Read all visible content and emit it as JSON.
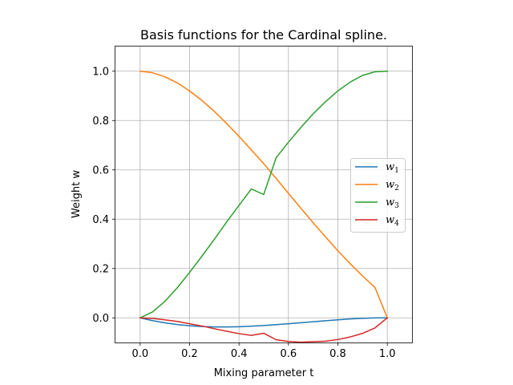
{
  "chart_data": {
    "type": "line",
    "title": "Basis functions for the Cardinal spline.",
    "xlabel": "Mixing parameter t",
    "ylabel": "Weight w",
    "xlim": [
      -0.1,
      1.1
    ],
    "ylim": [
      -0.1,
      1.1
    ],
    "xticks": [
      "0.0",
      "0.2",
      "0.4",
      "0.6",
      "0.8",
      "1.0"
    ],
    "yticks": [
      "0.0",
      "0.2",
      "0.4",
      "0.6",
      "0.8",
      "1.0"
    ],
    "grid": true,
    "legend_position": "center-right",
    "x": [
      0.0,
      0.05,
      0.1,
      0.15,
      0.2,
      0.25,
      0.3,
      0.35,
      0.4,
      0.45,
      0.5,
      0.55,
      0.6,
      0.65,
      0.7,
      0.75,
      0.8,
      0.85,
      0.9,
      0.95,
      1.0
    ],
    "series": [
      {
        "name": "w1",
        "color": "#1f77b4",
        "values": [
          0.0,
          -0.0113,
          -0.0203,
          -0.0271,
          -0.032,
          -0.0352,
          -0.0368,
          -0.0371,
          -0.036,
          -0.0339,
          -0.0312,
          -0.0278,
          -0.024,
          -0.02,
          -0.0158,
          -0.0117,
          -0.008,
          -0.0046,
          -0.002,
          -0.0005,
          0.0
        ]
      },
      {
        "name": "w2",
        "color": "#ff7f0e",
        "values": [
          1.0,
          0.9938,
          0.9775,
          0.9527,
          0.92,
          0.8813,
          0.837,
          0.788,
          0.736,
          0.6806,
          0.625,
          0.5656,
          0.505,
          0.4449,
          0.3855,
          0.3281,
          0.272,
          0.2193,
          0.1695,
          0.1235,
          0.0
        ]
      },
      {
        "name": "w3",
        "color": "#2ca02c",
        "values": [
          0.0,
          0.0238,
          0.0665,
          0.1215,
          0.184,
          0.25,
          0.318,
          0.3883,
          0.456,
          0.5227,
          0.5,
          0.6489,
          0.712,
          0.7716,
          0.827,
          0.8762,
          0.92,
          0.9559,
          0.983,
          0.9975,
          1.0
        ]
      },
      {
        "name": "w4",
        "color": "#d62728",
        "values": [
          0.0,
          -0.0024,
          -0.0081,
          -0.0147,
          -0.024,
          -0.0332,
          -0.0441,
          -0.0545,
          -0.064,
          -0.0712,
          -0.0625,
          -0.0886,
          -0.096,
          -0.0986,
          -0.0967,
          -0.0949,
          -0.088,
          -0.0775,
          -0.063,
          -0.0411,
          0.0
        ]
      }
    ]
  }
}
